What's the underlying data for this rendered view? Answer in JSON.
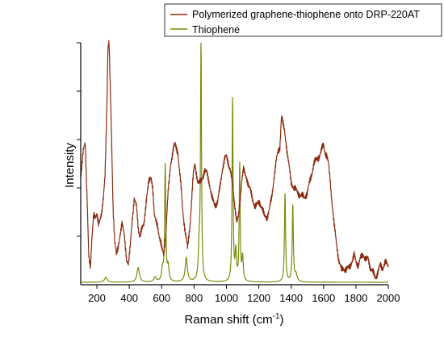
{
  "chart_data": {
    "type": "line",
    "xlabel": "Raman shift (cm",
    "xlabel_sup": "-1",
    "xlabel_suffix": ")",
    "ylabel": "Intensity",
    "xlim": [
      100,
      2000
    ],
    "ylim": [
      0,
      1
    ],
    "x_ticks": [
      200,
      400,
      600,
      800,
      1000,
      1200,
      1400,
      1600,
      1800,
      2000
    ],
    "y_tick_count": 5,
    "y_tick_labels_shown": false,
    "grid": false,
    "legend_position": "top-right",
    "series": [
      {
        "name": "Polymerized graphene-thiophene onto DRP-220AT",
        "color": "#8b2b10",
        "x": [
          100,
          115,
          128,
          140,
          150,
          160,
          170,
          180,
          190,
          200,
          210,
          220,
          230,
          240,
          250,
          260,
          268,
          275,
          282,
          290,
          300,
          310,
          320,
          330,
          340,
          355,
          370,
          385,
          395,
          405,
          415,
          430,
          445,
          455,
          465,
          475,
          490,
          505,
          520,
          535,
          545,
          555,
          565,
          575,
          585,
          600,
          612,
          625,
          640,
          655,
          670,
          680,
          690,
          700,
          710,
          720,
          730,
          745,
          760,
          775,
          785,
          795,
          805,
          815,
          825,
          838,
          850,
          865,
          880,
          895,
          910,
          925,
          945,
          960,
          975,
          990,
          1000,
          1010,
          1025,
          1040,
          1055,
          1065,
          1075,
          1085,
          1095,
          1105,
          1115,
          1130,
          1145,
          1160,
          1175,
          1190,
          1205,
          1220,
          1235,
          1250,
          1265,
          1280,
          1295,
          1310,
          1320,
          1330,
          1340,
          1350,
          1360,
          1370,
          1385,
          1400,
          1420,
          1440,
          1460,
          1480,
          1500,
          1520,
          1540,
          1560,
          1580,
          1590,
          1600,
          1610,
          1620,
          1630,
          1640,
          1650,
          1665,
          1680,
          1695,
          1710,
          1725,
          1740,
          1755,
          1770,
          1780,
          1790,
          1800,
          1815,
          1830,
          1845,
          1855,
          1865,
          1875,
          1890,
          1905,
          1920,
          1935,
          1950,
          1965,
          1980,
          2000
        ],
        "y": [
          0.45,
          0.55,
          0.58,
          0.35,
          0.12,
          0.06,
          0.2,
          0.3,
          0.28,
          0.28,
          0.25,
          0.28,
          0.3,
          0.35,
          0.45,
          0.7,
          0.98,
          1.0,
          0.82,
          0.62,
          0.32,
          0.18,
          0.12,
          0.15,
          0.2,
          0.25,
          0.2,
          0.1,
          0.08,
          0.15,
          0.25,
          0.35,
          0.32,
          0.24,
          0.2,
          0.22,
          0.25,
          0.35,
          0.42,
          0.45,
          0.4,
          0.28,
          0.26,
          0.25,
          0.2,
          0.15,
          0.13,
          0.2,
          0.38,
          0.5,
          0.55,
          0.58,
          0.57,
          0.55,
          0.47,
          0.4,
          0.31,
          0.22,
          0.15,
          0.25,
          0.35,
          0.45,
          0.5,
          0.46,
          0.42,
          0.42,
          0.44,
          0.47,
          0.46,
          0.42,
          0.36,
          0.33,
          0.34,
          0.4,
          0.48,
          0.52,
          0.53,
          0.51,
          0.47,
          0.4,
          0.31,
          0.26,
          0.28,
          0.35,
          0.44,
          0.48,
          0.45,
          0.43,
          0.4,
          0.35,
          0.33,
          0.33,
          0.34,
          0.32,
          0.28,
          0.28,
          0.31,
          0.36,
          0.45,
          0.52,
          0.55,
          0.57,
          0.7,
          0.66,
          0.63,
          0.58,
          0.5,
          0.42,
          0.4,
          0.38,
          0.37,
          0.36,
          0.38,
          0.44,
          0.5,
          0.52,
          0.54,
          0.56,
          0.58,
          0.55,
          0.53,
          0.5,
          0.44,
          0.36,
          0.25,
          0.17,
          0.1,
          0.06,
          0.07,
          0.06,
          0.07,
          0.09,
          0.1,
          0.12,
          0.1,
          0.08,
          0.11,
          0.13,
          0.11,
          0.1,
          0.11,
          0.07,
          0.05,
          0.03,
          0.05,
          0.08,
          0.07,
          0.09,
          0.08
        ]
      },
      {
        "name": "Thiophene",
        "color": "#7a8a0a",
        "baseline": 0.01,
        "peaks": [
          {
            "x": 255,
            "h": 0.02,
            "w": 10
          },
          {
            "x": 455,
            "h": 0.06,
            "w": 9
          },
          {
            "x": 560,
            "h": 0.02,
            "w": 9
          },
          {
            "x": 605,
            "h": 0.05,
            "w": 6
          },
          {
            "x": 622,
            "h": 0.48,
            "w": 4
          },
          {
            "x": 640,
            "h": 0.06,
            "w": 6
          },
          {
            "x": 752,
            "h": 0.1,
            "w": 8
          },
          {
            "x": 832,
            "h": 0.14,
            "w": 6
          },
          {
            "x": 843,
            "h": 1.0,
            "w": 3.5
          },
          {
            "x": 1038,
            "h": 0.77,
            "w": 3.5
          },
          {
            "x": 1058,
            "h": 0.12,
            "w": 5
          },
          {
            "x": 1082,
            "h": 0.49,
            "w": 3.5
          },
          {
            "x": 1100,
            "h": 0.1,
            "w": 5
          },
          {
            "x": 1362,
            "h": 0.37,
            "w": 4
          },
          {
            "x": 1410,
            "h": 0.32,
            "w": 4
          },
          {
            "x": 1430,
            "h": 0.03,
            "w": 8
          }
        ]
      }
    ]
  }
}
